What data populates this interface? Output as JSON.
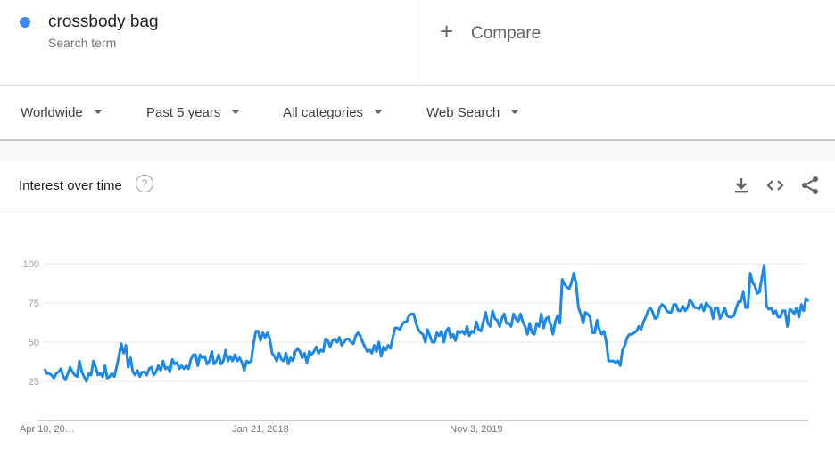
{
  "search_term": {
    "name": "crossbody bag",
    "subtitle": "Search term",
    "color": "#4285f4"
  },
  "compare": {
    "icon": "plus-icon",
    "label": "Compare"
  },
  "filters": {
    "region": "Worldwide",
    "time_range": "Past 5 years",
    "category": "All categories",
    "search_type": "Web Search"
  },
  "card": {
    "title": "Interest over time",
    "help_icon": "help-circle-icon",
    "tools": [
      "download-icon",
      "embed-code-icon",
      "share-icon"
    ]
  },
  "chart_data": {
    "type": "line",
    "title": "",
    "xlabel": "",
    "ylabel": "",
    "ylim": [
      0,
      100
    ],
    "yticks": [
      25,
      50,
      75,
      100
    ],
    "grid": true,
    "xtick_labels": [
      {
        "label": "Apr 10, 20…",
        "index": 0
      },
      {
        "label": "Jan 21, 2018",
        "index": 93
      },
      {
        "label": "Nov 3, 2019",
        "index": 186
      }
    ],
    "series": [
      {
        "name": "crossbody bag",
        "color": "#1e88e5",
        "values": [
          33,
          30,
          30,
          29,
          27,
          30,
          31,
          33,
          28,
          26,
          30,
          34,
          31,
          29,
          28,
          38,
          31,
          28,
          25,
          30,
          29,
          38,
          34,
          29,
          30,
          28,
          35,
          27,
          28,
          30,
          28,
          34,
          41,
          49,
          43,
          48,
          34,
          40,
          31,
          29,
          32,
          28,
          31,
          31,
          29,
          33,
          34,
          29,
          31,
          35,
          32,
          38,
          33,
          34,
          31,
          39,
          36,
          37,
          33,
          35,
          33,
          35,
          33,
          39,
          42,
          42,
          35,
          42,
          40,
          41,
          36,
          38,
          44,
          36,
          38,
          42,
          36,
          38,
          45,
          38,
          41,
          38,
          42,
          38,
          40,
          37,
          32,
          38,
          37,
          38,
          49,
          57,
          57,
          51,
          56,
          53,
          56,
          52,
          43,
          41,
          38,
          43,
          39,
          38,
          43,
          36,
          40,
          38,
          44,
          46,
          44,
          40,
          43,
          37,
          44,
          42,
          44,
          47,
          43,
          45,
          44,
          52,
          51,
          47,
          51,
          52,
          50,
          53,
          48,
          50,
          52,
          52,
          50,
          49,
          54,
          56,
          54,
          50,
          47,
          44,
          45,
          43,
          48,
          44,
          50,
          41,
          47,
          45,
          48,
          46,
          53,
          59,
          59,
          58,
          61,
          63,
          63,
          67,
          68,
          68,
          62,
          58,
          56,
          55,
          50,
          58,
          54,
          50,
          50,
          56,
          54,
          57,
          50,
          57,
          59,
          53,
          55,
          51,
          57,
          56,
          57,
          55,
          60,
          54,
          57,
          56,
          63,
          58,
          57,
          63,
          69,
          62,
          60,
          70,
          65,
          64,
          60,
          65,
          68,
          62,
          62,
          60,
          68,
          65,
          63,
          68,
          63,
          60,
          55,
          62,
          56,
          55,
          62,
          60,
          68,
          59,
          65,
          66,
          61,
          55,
          63,
          67,
          62,
          90,
          87,
          85,
          84,
          88,
          94,
          87,
          72,
          68,
          62,
          69,
          68,
          66,
          56,
          56,
          64,
          58,
          55,
          57,
          50,
          38,
          38,
          38,
          37,
          38,
          35,
          45,
          48,
          53,
          55,
          55,
          56,
          57,
          60,
          58,
          63,
          66,
          70,
          72,
          69,
          65,
          66,
          72,
          74,
          73,
          70,
          69,
          69,
          74,
          74,
          70,
          70,
          73,
          70,
          72,
          77,
          75,
          72,
          72,
          71,
          74,
          70,
          75,
          73,
          72,
          65,
          72,
          72,
          65,
          68,
          72,
          67,
          66,
          66,
          67,
          72,
          76,
          76,
          82,
          72,
          72,
          94,
          88,
          86,
          81,
          82,
          91,
          99,
          73,
          71,
          72,
          68,
          70,
          66,
          66,
          70,
          70,
          60,
          71,
          70,
          68,
          72,
          66,
          74,
          70,
          78,
          76
        ]
      }
    ]
  }
}
